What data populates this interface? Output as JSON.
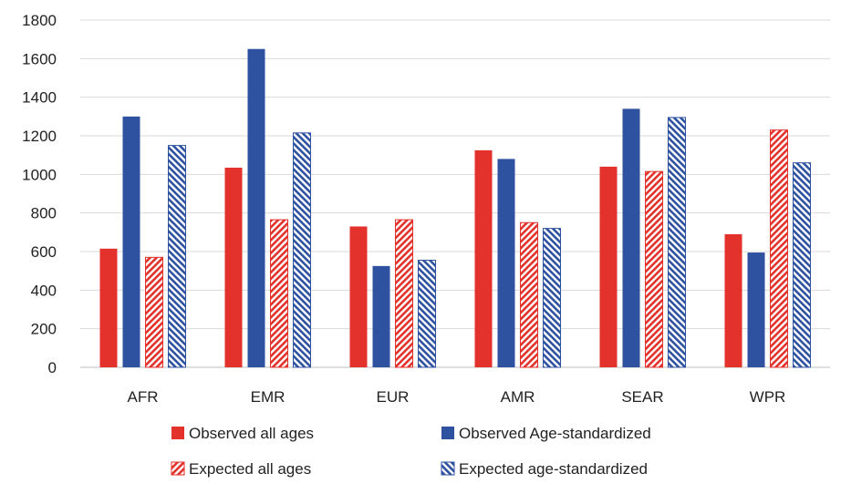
{
  "chart_data": {
    "type": "bar",
    "title": "",
    "xlabel": "",
    "ylabel": "",
    "categories": [
      "AFR",
      "EMR",
      "EUR",
      "AMR",
      "SEAR",
      "WPR"
    ],
    "ylim": [
      0,
      1800
    ],
    "yticks": [
      0,
      200,
      400,
      600,
      800,
      1000,
      1200,
      1400,
      1600,
      1800
    ],
    "grid": true,
    "legend_position": "bottom",
    "series": [
      {
        "name": "Observed all ages",
        "values": [
          615,
          1035,
          730,
          1125,
          1040,
          690
        ],
        "color": "#e3322b",
        "pattern": "solid"
      },
      {
        "name": "Observed Age-standardized",
        "values": [
          1300,
          1650,
          525,
          1080,
          1340,
          595
        ],
        "color": "#2f52a0",
        "pattern": "solid"
      },
      {
        "name": "Expected all ages",
        "values": [
          570,
          765,
          765,
          750,
          1015,
          1230
        ],
        "color": "#e3322b",
        "pattern": "hatch"
      },
      {
        "name": "Expected age-standardized",
        "values": [
          1150,
          1215,
          555,
          720,
          1295,
          1060
        ],
        "color": "#2f52a0",
        "pattern": "hatch"
      }
    ]
  }
}
